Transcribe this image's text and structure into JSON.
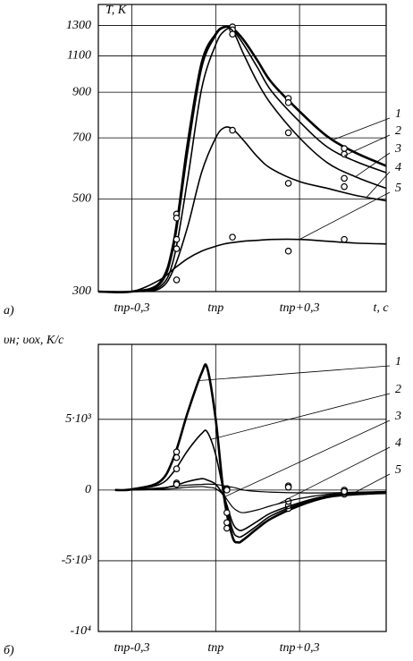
{
  "chart_data": [
    {
      "type": "line",
      "panel": "a)",
      "ylabel": "T, K",
      "xlabel": "t, c",
      "log_y": true,
      "grid": true,
      "xlim": [
        -0.42,
        0.61
      ],
      "ylim": [
        300,
        1460
      ],
      "xticks": [
        {
          "value": -0.3,
          "label": "tпр-0,3"
        },
        {
          "value": 0,
          "label": "tпр"
        },
        {
          "value": 0.3,
          "label": "tпр+0,3"
        }
      ],
      "yticks": [
        300,
        500,
        700,
        900,
        1100,
        1300
      ],
      "x": [
        -0.42,
        -0.3,
        -0.2,
        -0.15,
        -0.1,
        -0.05,
        0,
        0.03,
        0.06,
        0.1,
        0.15,
        0.2,
        0.3,
        0.4,
        0.5,
        0.61
      ],
      "measured_x": [
        -0.14,
        0.06,
        0.26,
        0.46
      ],
      "series": [
        {
          "name": "1",
          "color": "#000",
          "line_width": 2.6,
          "values": [
            300,
            300,
            315,
            395,
            680,
            1060,
            1240,
            1290,
            1280,
            1200,
            1070,
            950,
            810,
            705,
            645,
            600
          ],
          "measured": [
            460,
            1290,
            870,
            660
          ]
        },
        {
          "name": "2",
          "color": "#000",
          "line_width": 1.6,
          "values": [
            300,
            300,
            312,
            385,
            650,
            1030,
            1230,
            1285,
            1270,
            1170,
            1030,
            905,
            765,
            665,
            615,
            578
          ],
          "measured": [
            450,
            1270,
            850,
            640
          ]
        },
        {
          "name": "3",
          "color": "#000",
          "line_width": 1.6,
          "values": [
            300,
            300,
            308,
            360,
            560,
            920,
            1170,
            1260,
            1265,
            1110,
            950,
            840,
            700,
            610,
            565,
            530
          ],
          "measured": [
            400,
            1240,
            720,
            560
          ]
        },
        {
          "name": "4",
          "color": "#000",
          "line_width": 1.6,
          "values": [
            300,
            300,
            305,
            340,
            430,
            580,
            700,
            740,
            735,
            690,
            630,
            590,
            550,
            530,
            510,
            495
          ],
          "measured": [
            380,
            730,
            545,
            535
          ]
        },
        {
          "name": "5",
          "color": "#000",
          "line_width": 1.6,
          "values": [
            300,
            300,
            320,
            340,
            360,
            375,
            385,
            390,
            393,
            396,
            398,
            400,
            400,
            396,
            392,
            390
          ],
          "measured": [
            320,
            405,
            375,
            400
          ]
        }
      ]
    },
    {
      "type": "line",
      "panel": "б)",
      "ylabel": "υн; υох, K/c",
      "log_y": false,
      "grid": true,
      "xlim": [
        -0.42,
        0.61
      ],
      "ylim": [
        -10000,
        10300
      ],
      "xticks": [
        {
          "value": -0.3,
          "label": "tпр-0,3"
        },
        {
          "value": 0,
          "label": "tпр"
        },
        {
          "value": 0.3,
          "label": "tпр+0,3"
        }
      ],
      "yticks": [
        {
          "value": -10000,
          "label": "-10⁴"
        },
        {
          "value": -5000,
          "label": "-5·10³"
        },
        0,
        {
          "value": 5000,
          "label": "5·10³"
        }
      ],
      "x": [
        -0.36,
        -0.3,
        -0.2,
        -0.15,
        -0.1,
        -0.05,
        -0.03,
        0,
        0.03,
        0.06,
        0.08,
        0.1,
        0.15,
        0.2,
        0.3,
        0.4,
        0.5,
        0.61
      ],
      "measured_x": [
        -0.14,
        0.04,
        0.26,
        0.46
      ],
      "series": [
        {
          "name": "1",
          "color": "#000",
          "line_width": 2.6,
          "values": [
            0,
            50,
            600,
            2300,
            5500,
            8300,
            8600,
            5000,
            -500,
            -3300,
            -3700,
            -3500,
            -2700,
            -2000,
            -1100,
            -500,
            -300,
            -200
          ],
          "measured": [
            2700,
            -2700,
            -1300,
            -300
          ]
        },
        {
          "name": "2",
          "color": "#000",
          "line_width": 1.6,
          "values": [
            0,
            30,
            400,
            1300,
            2800,
            4000,
            4100,
            2500,
            -300,
            -2800,
            -3300,
            -3200,
            -2500,
            -1800,
            -1000,
            -500,
            -300,
            -200
          ],
          "measured": [
            2300,
            -2300,
            -1100,
            -200
          ]
        },
        {
          "name": "3",
          "color": "#000",
          "line_width": 1.6,
          "values": [
            0,
            10,
            100,
            300,
            600,
            800,
            700,
            400,
            -500,
            -2300,
            -2800,
            -2800,
            -2200,
            -1600,
            -900,
            -400,
            -250,
            -150
          ],
          "measured": [
            1500,
            -1600,
            -800,
            -100
          ]
        },
        {
          "name": "4",
          "color": "#000",
          "line_width": 1.2,
          "values": [
            0,
            5,
            50,
            100,
            200,
            250,
            200,
            100,
            -400,
            -1200,
            -1500,
            -1600,
            -1400,
            -1100,
            -600,
            -300,
            -200,
            -100
          ],
          "measured": [
            500,
            100,
            300,
            0
          ]
        },
        {
          "name": "5",
          "color": "#000",
          "line_width": 1.2,
          "values": [
            0,
            20,
            150,
            250,
            350,
            400,
            420,
            400,
            300,
            200,
            100,
            0,
            -100,
            -150,
            -200,
            -200,
            -150,
            -100
          ],
          "measured": [
            400,
            0,
            200,
            -100
          ]
        }
      ]
    }
  ]
}
